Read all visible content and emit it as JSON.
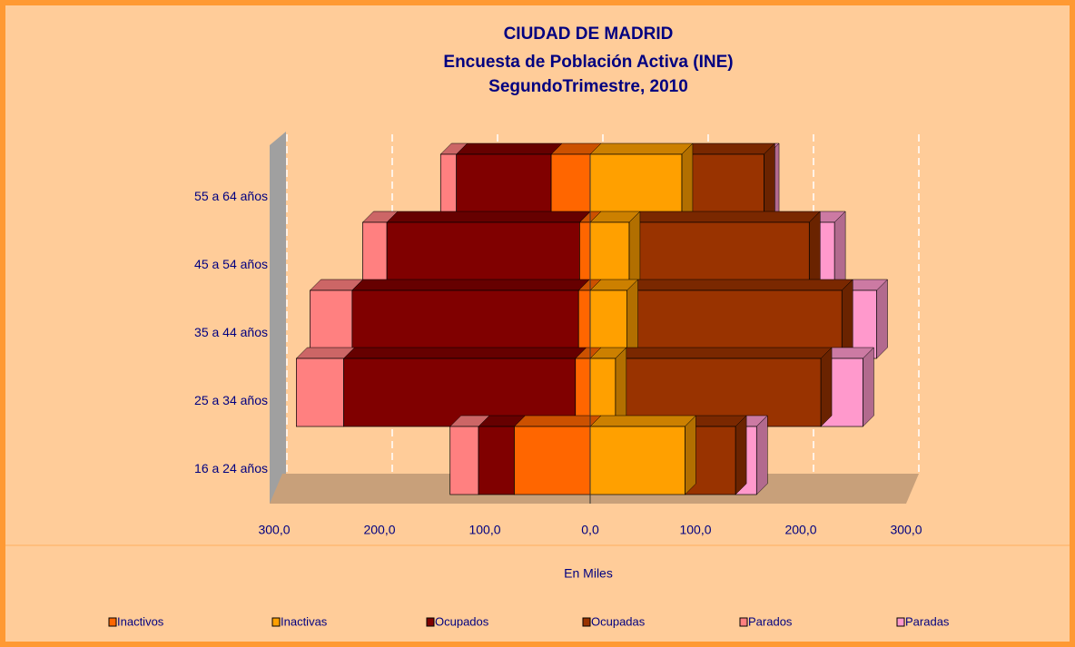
{
  "chart_data": {
    "type": "pyramid",
    "title": [
      "CIUDAD DE MADRID",
      "Encuesta de Población Activa (INE)",
      "SegundoTrimestre, 2010"
    ],
    "x_label": "En Miles",
    "categories": [
      "16 a 24 años",
      "25 a 34 años",
      "35 a 44 años",
      "45 a 54 años",
      "55 a 64 años"
    ],
    "series": [
      {
        "name": "Inactivos",
        "color": "#ff6600",
        "values": [
          -72,
          -14,
          -11,
          -10,
          -37
        ]
      },
      {
        "name": "Inactivas",
        "color": "#ffa000",
        "values": [
          90,
          24,
          35,
          37,
          87
        ]
      },
      {
        "name": "Ocupados",
        "color": "#800000",
        "values": [
          -34,
          -220,
          -215,
          -183,
          -90
        ]
      },
      {
        "name": "Ocupadas",
        "color": "#993300",
        "values": [
          48,
          195,
          204,
          171,
          78
        ]
      },
      {
        "name": "Parados",
        "color": "#ff8080",
        "values": [
          -27,
          -45,
          -40,
          -23,
          -15
        ]
      },
      {
        "name": "Paradas",
        "color": "#ff99cc",
        "values": [
          20,
          40,
          33,
          24,
          4
        ]
      }
    ],
    "xlim": [
      -300,
      300
    ],
    "xticks": [
      {
        "value": -300,
        "label": "300,0"
      },
      {
        "value": -200,
        "label": "200,0"
      },
      {
        "value": -100,
        "label": "100,0"
      },
      {
        "value": 0,
        "label": "0,0"
      },
      {
        "value": 100,
        "label": "100,0"
      },
      {
        "value": 200,
        "label": "200,0"
      },
      {
        "value": 300,
        "label": "300,0"
      }
    ],
    "grid": true,
    "legend": "bottom"
  }
}
